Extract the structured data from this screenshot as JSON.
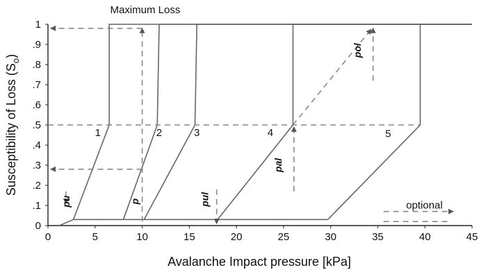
{
  "chart_data": {
    "type": "line",
    "xlabel": "Avalanche Impact pressure [kPa]",
    "ylabel_text": "Susceptibility of Loss (S",
    "ylabel_sub": "o",
    "ylabel_close": ")",
    "xlim": [
      0,
      45
    ],
    "ylim": [
      0,
      1
    ],
    "x_ticks": [
      {
        "v": 0,
        "label": "0"
      },
      {
        "v": 5,
        "label": "5"
      },
      {
        "v": 10,
        "label": "10"
      },
      {
        "v": 15,
        "label": "15"
      },
      {
        "v": 20,
        "label": "20"
      },
      {
        "v": 25,
        "label": "25"
      },
      {
        "v": 30,
        "label": "30"
      },
      {
        "v": 35,
        "label": "35"
      },
      {
        "v": 40,
        "label": "40"
      },
      {
        "v": 45,
        "label": "45"
      }
    ],
    "y_ticks": [
      {
        "v": 0,
        "label": "0"
      },
      {
        "v": 0.1,
        "label": ".1"
      },
      {
        "v": 0.2,
        "label": ".2"
      },
      {
        "v": 0.3,
        "label": ".3"
      },
      {
        "v": 0.4,
        "label": ".4"
      },
      {
        "v": 0.5,
        "label": ".5"
      },
      {
        "v": 0.6,
        "label": ".6"
      },
      {
        "v": 0.7,
        "label": ".7"
      },
      {
        "v": 0.8,
        "label": ".8"
      },
      {
        "v": 0.9,
        "label": ".9"
      },
      {
        "v": 1,
        "label": "1"
      }
    ],
    "series": [
      {
        "label": "1",
        "x": [
          1.2,
          2.7,
          6.5,
          6.5,
          45
        ],
        "y": [
          0,
          0.03,
          0.5,
          1,
          1
        ]
      },
      {
        "label": "2",
        "x": [
          8.0,
          11.6,
          11.8,
          45
        ],
        "y": [
          0.03,
          0.5,
          1,
          1
        ]
      },
      {
        "label": "3",
        "x": [
          10.2,
          15.6,
          15.8,
          45
        ],
        "y": [
          0.03,
          0.5,
          1,
          1
        ]
      },
      {
        "label": "4",
        "x": [
          18.0,
          26.0,
          26.0,
          45
        ],
        "y": [
          0.03,
          0.5,
          1,
          1
        ]
      },
      {
        "label": "5",
        "x": [
          29.7,
          39.5,
          39.5,
          45
        ],
        "y": [
          0.03,
          0.5,
          1,
          1
        ]
      }
    ],
    "baseline": {
      "x": [
        2.7,
        29.7
      ],
      "y": [
        0.03,
        0.03
      ]
    },
    "curve_labels": [
      {
        "text": "1",
        "x": 5.3,
        "y": 0.445
      },
      {
        "text": "2",
        "x": 11.8,
        "y": 0.445
      },
      {
        "text": "3",
        "x": 15.8,
        "y": 0.445
      },
      {
        "text": "4",
        "x": 23.6,
        "y": 0.445
      },
      {
        "text": "5",
        "x": 36.1,
        "y": 0.44
      }
    ],
    "dashed_lines": [
      {
        "x": [
          0,
          39.5
        ],
        "y": [
          0.5,
          0.5
        ],
        "arrow": false
      },
      {
        "x": [
          26.0,
          34.3
        ],
        "y": [
          0.5,
          0.975
        ],
        "arrow": true
      },
      {
        "x": [
          10.0,
          10.0
        ],
        "y": [
          0.02,
          0.98
        ],
        "arrow": true
      },
      {
        "x": [
          10.0,
          0.3
        ],
        "y": [
          0.98,
          0.98
        ],
        "arrow": true
      },
      {
        "x": [
          10.0,
          0.3
        ],
        "y": [
          0.28,
          0.28
        ],
        "arrow": true
      },
      {
        "x": [
          34.5,
          34.5
        ],
        "y": [
          0.72,
          0.98
        ],
        "arrow": true
      },
      {
        "x": [
          26.1,
          26.1
        ],
        "y": [
          0.17,
          0.49
        ],
        "arrow": true
      },
      {
        "x": [
          17.9,
          17.9
        ],
        "y": [
          0.18,
          0.01
        ],
        "arrow": true
      },
      {
        "x": [
          1.9,
          1.9
        ],
        "y": [
          0.17,
          0.11
        ],
        "arrow": true
      },
      {
        "x": [
          35.6,
          42.5
        ],
        "y": [
          0.02,
          0.02
        ],
        "arrow": false,
        "offset": 0.07
      },
      {
        "x": [
          35.6,
          43.0
        ],
        "y": [
          0.07,
          0.07
        ],
        "arrow": true
      }
    ],
    "annotations": [
      {
        "text": "Maximum Loss",
        "x": 6.6,
        "y": 1.055,
        "style": "plain",
        "rotate": 0
      },
      {
        "text": "optional",
        "x": 38.0,
        "y": 0.085,
        "style": "plain",
        "rotate": 0
      },
      {
        "text": "pol",
        "x": 33.2,
        "y": 0.87,
        "style": "ital",
        "rotate": -90
      },
      {
        "text": "pal",
        "x": 24.8,
        "y": 0.3,
        "style": "ital",
        "rotate": -90
      },
      {
        "text": "pul",
        "x": 17.0,
        "y": 0.13,
        "style": "ital",
        "rotate": -90
      },
      {
        "text": "pu",
        "x": 2.3,
        "y": 0.12,
        "style": "ital",
        "rotate": -90
      },
      {
        "text": "p",
        "x": 9.6,
        "y": 0.12,
        "style": "ital",
        "rotate": -90
      }
    ],
    "grid": false
  }
}
